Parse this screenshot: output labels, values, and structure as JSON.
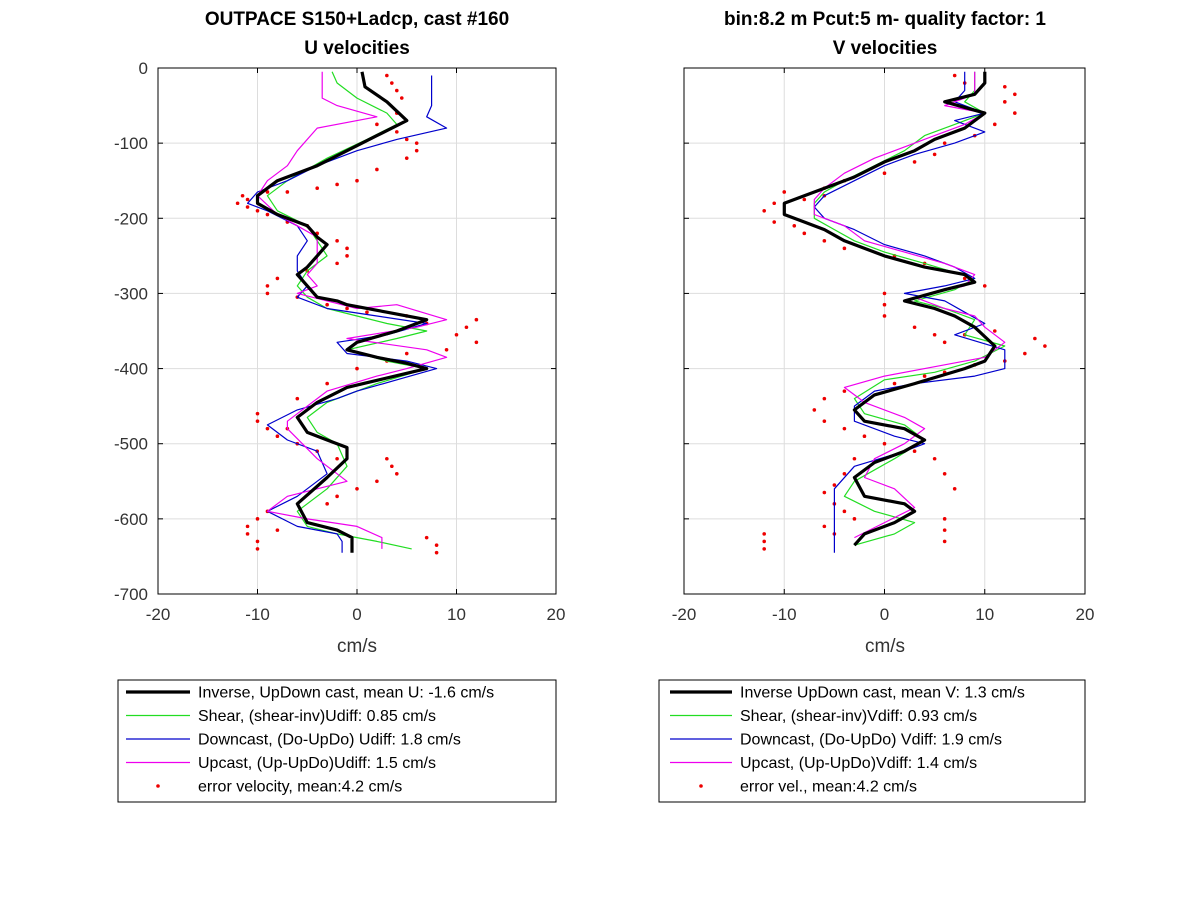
{
  "colors": {
    "inverse": "#000000",
    "shear": "#22dd22",
    "downcast": "#0000cc",
    "upcast": "#ee00ee",
    "error": "#ee0000",
    "grid": "#dddddd"
  },
  "chart_data": [
    {
      "type": "line",
      "title": "OUTPACE S150+Ladcp, cast #160",
      "subtitle": "U velocities",
      "xlabel": "cm/s",
      "ylabel": "",
      "xlim": [
        -20,
        20
      ],
      "ylim": [
        -700,
        0
      ],
      "xticks": [
        -20,
        -10,
        0,
        10,
        20
      ],
      "yticks": [
        0,
        -100,
        -200,
        -300,
        -400,
        -500,
        -600,
        -700
      ],
      "grid": true,
      "legend": "below",
      "series": [
        {
          "key": "inverse",
          "legend": "Inverse, UpDown cast, mean U:  -1.6 cm/s",
          "x": [
            0.5,
            0.8,
            3,
            5,
            2,
            -1,
            -4,
            -8,
            -10,
            -10,
            -8,
            -5,
            -4,
            -3,
            -4,
            -5,
            -6,
            -5,
            -4,
            -2,
            -1,
            3,
            7,
            4,
            0,
            -1,
            2,
            5,
            7,
            -1,
            -4,
            -6,
            -5,
            -3,
            -1,
            -1,
            -3,
            -6,
            -5,
            -2,
            -0.5,
            -0.5
          ],
          "y": [
            -5,
            -25,
            -45,
            -70,
            -90,
            -110,
            -130,
            -150,
            -170,
            -180,
            -195,
            -210,
            -225,
            -235,
            -250,
            -265,
            -275,
            -290,
            -305,
            -310,
            -315,
            -325,
            -335,
            -350,
            -365,
            -375,
            -385,
            -393,
            -400,
            -425,
            -445,
            -465,
            -485,
            -495,
            -505,
            -520,
            -545,
            -580,
            -605,
            -615,
            -625,
            -645
          ]
        },
        {
          "key": "shear",
          "legend": "Shear, (shear-inv)Udiff:  0.85 cm/s",
          "x": [
            -2.5,
            -2,
            0,
            3,
            4,
            1,
            -3,
            -7,
            -9,
            -8,
            -5,
            -4,
            -3,
            -5,
            -6,
            -5,
            -3,
            0,
            3,
            7,
            4,
            -1,
            3,
            7,
            2,
            -3,
            -5,
            -4,
            -2,
            -1,
            -3,
            -6,
            -5,
            -2,
            2,
            5.5
          ],
          "y": [
            -5,
            -20,
            -40,
            -60,
            -75,
            -95,
            -120,
            -150,
            -170,
            -190,
            -210,
            -230,
            -250,
            -270,
            -290,
            -305,
            -320,
            -330,
            -340,
            -350,
            -360,
            -375,
            -390,
            -400,
            -420,
            -445,
            -465,
            -485,
            -500,
            -530,
            -560,
            -590,
            -610,
            -620,
            -630,
            -640
          ]
        },
        {
          "key": "downcast",
          "legend": "Downcast, (Do-UpDo) Udiff:  1.8 cm/s",
          "x": [
            7.5,
            7.5,
            7,
            9,
            4,
            0,
            -4,
            -7,
            -10,
            -11,
            -9,
            -6,
            -5,
            -6,
            -6,
            -5,
            -6,
            -3,
            2,
            7,
            3,
            -2,
            -1,
            5,
            8,
            0,
            -2,
            -6,
            -9,
            -7,
            -4,
            -3,
            -6,
            -9,
            -6,
            -2,
            -1.5,
            -1.5
          ],
          "y": [
            -10,
            -50,
            -65,
            -80,
            -95,
            -110,
            -130,
            -150,
            -165,
            -180,
            -190,
            -210,
            -230,
            -250,
            -270,
            -290,
            -305,
            -320,
            -330,
            -340,
            -355,
            -365,
            -380,
            -390,
            -400,
            -430,
            -440,
            -455,
            -475,
            -495,
            -510,
            -540,
            -570,
            -590,
            -610,
            -620,
            -630,
            -645
          ]
        },
        {
          "key": "upcast",
          "legend": "Upcast, (Up-UpDo)Udiff:  1.5 cm/s",
          "x": [
            -3.5,
            -3.5,
            -2,
            2,
            -4,
            -6,
            -7,
            -9,
            -10,
            -8,
            -6,
            -4,
            -4,
            -4,
            -5,
            -4,
            -6,
            -3,
            0,
            4,
            9,
            6,
            -1,
            7,
            9,
            5,
            2,
            -3,
            -6,
            -7,
            -7,
            -4,
            -1,
            -7,
            -9,
            -5,
            0,
            2.5,
            2.5
          ],
          "y": [
            -5,
            -40,
            -50,
            -65,
            -80,
            -110,
            -130,
            -150,
            -170,
            -195,
            -210,
            -225,
            -240,
            -260,
            -275,
            -290,
            -300,
            -310,
            -320,
            -315,
            -335,
            -345,
            -360,
            -375,
            -385,
            -400,
            -410,
            -430,
            -460,
            -470,
            -480,
            -520,
            -550,
            -570,
            -590,
            -600,
            -610,
            -625,
            -640
          ]
        }
      ],
      "error": {
        "key": "error",
        "legend": "error velocity, mean:4.2 cm/s",
        "x": [
          3,
          3.5,
          4,
          4.5,
          4,
          2,
          4,
          5,
          6,
          6,
          5,
          2,
          0,
          -2,
          -4,
          -7,
          -9,
          -11,
          -11.5,
          -12,
          -11,
          -10,
          -9,
          -7,
          -5,
          -4,
          -2,
          -1,
          -1,
          -2,
          -5,
          -8,
          -9,
          -9,
          -6,
          -3,
          -1,
          1,
          5,
          7,
          12,
          11,
          10,
          12,
          9,
          5,
          3,
          0,
          -3,
          -6,
          -10,
          -10,
          -9,
          -8,
          -6,
          -4,
          -2,
          3,
          3.5,
          4,
          2,
          0,
          -2,
          -3,
          -9,
          -10,
          -11,
          -11,
          -10,
          -10,
          -8,
          7,
          8,
          8,
          -7
        ],
        "y": [
          -10,
          -20,
          -30,
          -40,
          -60,
          -75,
          -85,
          -95,
          -100,
          -110,
          -120,
          -135,
          -150,
          -155,
          -160,
          -165,
          -165,
          -175,
          -170,
          -180,
          -185,
          -190,
          -195,
          -205,
          -210,
          -220,
          -230,
          -240,
          -250,
          -260,
          -270,
          -280,
          -290,
          -300,
          -305,
          -315,
          -320,
          -325,
          -330,
          -340,
          -335,
          -345,
          -355,
          -365,
          -375,
          -380,
          -390,
          -400,
          -420,
          -440,
          -460,
          -470,
          -480,
          -490,
          -500,
          -510,
          -520,
          -520,
          -530,
          -540,
          -550,
          -560,
          -570,
          -580,
          -590,
          -600,
          -610,
          -620,
          -630,
          -640,
          -615,
          -625,
          -635,
          -645,
          -480
        ]
      }
    },
    {
      "type": "line",
      "title": "bin:8.2 m  Pcut:5 m- quality factor:  1",
      "subtitle": "V velocities",
      "xlabel": "cm/s",
      "ylabel": "",
      "xlim": [
        -20,
        20
      ],
      "ylim": [
        -700,
        0
      ],
      "xticks": [
        -20,
        -10,
        0,
        10,
        20
      ],
      "yticks": [
        0,
        -100,
        -200,
        -300,
        -400,
        -500,
        -600,
        -700
      ],
      "grid": true,
      "legend": "below",
      "series": [
        {
          "key": "inverse",
          "legend": "Inverse UpDown cast, mean V:  1.3 cm/s",
          "x": [
            10,
            10,
            9,
            6,
            10,
            8,
            5,
            3,
            0,
            -3,
            -6,
            -8,
            -10,
            -10,
            -8,
            -6,
            -4,
            0,
            4,
            8,
            9,
            6,
            2,
            5,
            7,
            9,
            11,
            10,
            8,
            3,
            -1,
            -3,
            -2,
            2,
            4,
            2,
            -1,
            -3,
            -2,
            2,
            3,
            1,
            -2,
            -3
          ],
          "y": [
            -5,
            -20,
            -35,
            -45,
            -60,
            -80,
            -95,
            -110,
            -125,
            -145,
            -160,
            -170,
            -180,
            -195,
            -205,
            -215,
            -230,
            -250,
            -265,
            -275,
            -285,
            -295,
            -310,
            -320,
            -330,
            -345,
            -370,
            -390,
            -400,
            -420,
            -435,
            -455,
            -470,
            -480,
            -495,
            -510,
            -525,
            -545,
            -570,
            -580,
            -590,
            -605,
            -620,
            -635
          ]
        },
        {
          "key": "shear",
          "legend": "Shear, (shear-inv)Vdiff:  0.93 cm/s",
          "x": [
            9,
            9,
            8,
            10,
            7,
            4,
            2,
            -1,
            -4,
            -6,
            -7,
            -7,
            -5,
            -3,
            0,
            4,
            9,
            7,
            3,
            6,
            9,
            8,
            12,
            9,
            5,
            0,
            -3,
            -2,
            2,
            4,
            1,
            -3,
            -4,
            -1,
            3,
            1,
            -3
          ],
          "y": [
            -5,
            -30,
            -45,
            -60,
            -75,
            -90,
            -110,
            -130,
            -150,
            -165,
            -180,
            -200,
            -215,
            -230,
            -245,
            -260,
            -280,
            -295,
            -310,
            -320,
            -335,
            -355,
            -370,
            -390,
            -405,
            -415,
            -440,
            -460,
            -475,
            -495,
            -520,
            -550,
            -570,
            -590,
            -605,
            -620,
            -635
          ]
        },
        {
          "key": "downcast",
          "legend": "Downcast, (Do-UpDo) Vdiff:  1.9 cm/s",
          "x": [
            8,
            8,
            7,
            10,
            7,
            10,
            7,
            3,
            0,
            -3,
            -6,
            -7,
            -6,
            -3,
            0,
            4,
            7,
            9,
            6,
            2,
            6,
            8,
            10,
            7,
            12,
            12,
            9,
            3,
            -1,
            -3,
            -3,
            1,
            4,
            2,
            -3,
            -5,
            -5,
            -5
          ],
          "y": [
            -5,
            -30,
            -45,
            -60,
            -70,
            -85,
            -100,
            -115,
            -130,
            -150,
            -170,
            -185,
            -200,
            -215,
            -235,
            -250,
            -265,
            -280,
            -290,
            -300,
            -310,
            -325,
            -340,
            -355,
            -375,
            -400,
            -410,
            -420,
            -430,
            -450,
            -470,
            -490,
            -500,
            -510,
            -530,
            -560,
            -600,
            -645
          ]
        },
        {
          "key": "upcast",
          "legend": "Upcast, (Up-UpDo)Vdiff:  1.4 cm/s",
          "x": [
            9,
            9,
            6,
            10,
            8,
            5,
            2,
            -1,
            -4,
            -6,
            -7,
            -7,
            -4,
            -2,
            2,
            6,
            9,
            8,
            3,
            6,
            9,
            10,
            12,
            10,
            6,
            0,
            -4,
            -2,
            2,
            4,
            2,
            -1,
            -2,
            1,
            3,
            0,
            -3
          ],
          "y": [
            -5,
            -35,
            -50,
            -60,
            -75,
            -90,
            -105,
            -120,
            -140,
            -160,
            -175,
            -195,
            -210,
            -230,
            -245,
            -260,
            -275,
            -290,
            -305,
            -320,
            -330,
            -345,
            -365,
            -385,
            -395,
            -410,
            -425,
            -445,
            -465,
            -480,
            -500,
            -520,
            -545,
            -560,
            -585,
            -605,
            -625
          ]
        }
      ],
      "error": {
        "key": "error",
        "legend": "error vel., mean:4.2 cm/s",
        "x": [
          7,
          8,
          12,
          13,
          12,
          13,
          11,
          9,
          6,
          5,
          3,
          0,
          -4,
          -6,
          -6,
          -8,
          -10,
          -11,
          -12,
          -11,
          -9,
          -8,
          -6,
          -4,
          1,
          4,
          8,
          10,
          0,
          0,
          0,
          3,
          5,
          6,
          8,
          11,
          15,
          16,
          14,
          12,
          9,
          6,
          4,
          1,
          -4,
          -6,
          -7,
          -6,
          -4,
          -2,
          0,
          3,
          5,
          6,
          7,
          -3,
          -4,
          -5,
          -6,
          -5,
          -4,
          -3,
          -6,
          -5,
          6,
          6,
          6,
          -12,
          -12,
          -12
        ],
        "y": [
          -10,
          -20,
          -25,
          -35,
          -45,
          -60,
          -75,
          -90,
          -100,
          -115,
          -125,
          -140,
          -150,
          -160,
          -170,
          -175,
          -165,
          -180,
          -190,
          -205,
          -210,
          -220,
          -230,
          -240,
          -250,
          -260,
          -280,
          -290,
          -300,
          -315,
          -330,
          -345,
          -355,
          -365,
          -355,
          -350,
          -360,
          -370,
          -380,
          -390,
          -395,
          -405,
          -410,
          -420,
          -430,
          -440,
          -455,
          -470,
          -480,
          -490,
          -500,
          -510,
          -520,
          -540,
          -560,
          -520,
          -540,
          -555,
          -565,
          -580,
          -590,
          -600,
          -610,
          -620,
          -600,
          -615,
          -630,
          -620,
          -630,
          -640
        ]
      }
    }
  ]
}
